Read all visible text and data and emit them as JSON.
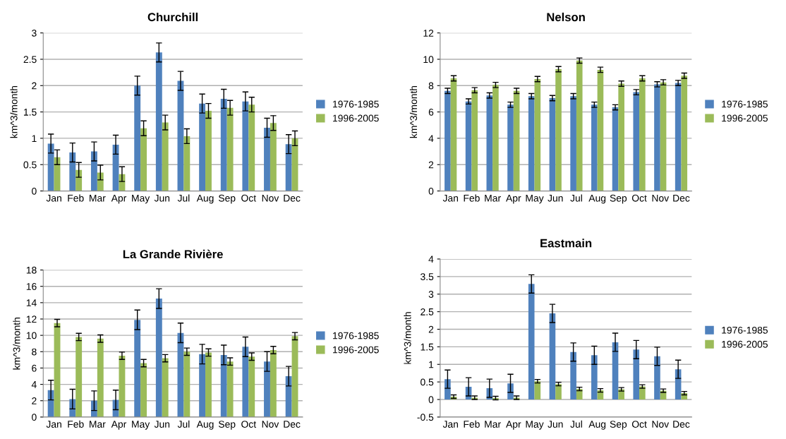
{
  "chart_data": [
    {
      "type": "bar",
      "title": "Churchill",
      "ylabel": "km^3/month",
      "categories": [
        "Jan",
        "Feb",
        "Mar",
        "Apr",
        "May",
        "Jun",
        "Jul",
        "Aug",
        "Sep",
        "Oct",
        "Nov",
        "Dec"
      ],
      "ylim": [
        0,
        3
      ],
      "yticks": [
        0,
        {
          "value": 0.5,
          "label": "0.5"
        },
        1,
        {
          "value": 1.5,
          "label": "1.5"
        },
        2,
        {
          "value": 2.5,
          "label": "2.5"
        },
        3
      ],
      "grid": "y",
      "legend": "right",
      "series": [
        {
          "name": "1976-1985",
          "color": "#4f81bd",
          "values": [
            0.9,
            0.73,
            0.75,
            0.88,
            2.0,
            2.63,
            2.09,
            1.66,
            1.75,
            1.7,
            1.2,
            0.89
          ],
          "errors": [
            0.18,
            0.18,
            0.18,
            0.18,
            0.18,
            0.18,
            0.18,
            0.18,
            0.18,
            0.18,
            0.18,
            0.18
          ]
        },
        {
          "name": "1996-2005",
          "color": "#9bbb59",
          "values": [
            0.64,
            0.4,
            0.35,
            0.32,
            1.19,
            1.3,
            1.04,
            1.52,
            1.58,
            1.64,
            1.29,
            1.0
          ],
          "errors": [
            0.14,
            0.14,
            0.14,
            0.14,
            0.14,
            0.14,
            0.14,
            0.14,
            0.14,
            0.14,
            0.14,
            0.14
          ]
        }
      ]
    },
    {
      "type": "bar",
      "title": "Nelson",
      "ylabel": "km^3/month",
      "categories": [
        "Jan",
        "Feb",
        "Mar",
        "Apr",
        "May",
        "Jun",
        "Jul",
        "Aug",
        "Sep",
        "Oct",
        "Nov",
        "Dec"
      ],
      "ylim": [
        0,
        12
      ],
      "yticks": [
        0,
        2,
        4,
        6,
        8,
        10,
        12
      ],
      "grid": "y",
      "legend": "right",
      "series": [
        {
          "name": "1976-1985",
          "color": "#4f81bd",
          "values": [
            7.6,
            6.8,
            7.25,
            6.55,
            7.2,
            7.05,
            7.2,
            6.55,
            6.35,
            7.5,
            8.1,
            8.2
          ],
          "errors": [
            0.2,
            0.2,
            0.2,
            0.2,
            0.2,
            0.2,
            0.2,
            0.2,
            0.2,
            0.2,
            0.2,
            0.2
          ]
        },
        {
          "name": "1996-2005",
          "color": "#9bbb59",
          "values": [
            8.55,
            7.65,
            8.05,
            7.6,
            8.5,
            9.25,
            9.9,
            9.2,
            8.15,
            8.55,
            8.25,
            8.75
          ],
          "errors": [
            0.2,
            0.2,
            0.2,
            0.2,
            0.2,
            0.2,
            0.2,
            0.2,
            0.2,
            0.2,
            0.2,
            0.2
          ]
        }
      ]
    },
    {
      "type": "bar",
      "title": "La Grande Rivière",
      "ylabel": "km^3/month",
      "categories": [
        "Jan",
        "Feb",
        "Mar",
        "Apr",
        "May",
        "Jun",
        "Jul",
        "Aug",
        "Sep",
        "Oct",
        "Nov",
        "Dec"
      ],
      "ylim": [
        0,
        18
      ],
      "yticks": [
        0,
        2,
        4,
        6,
        8,
        10,
        12,
        14,
        16,
        18
      ],
      "grid": "y",
      "legend": "right",
      "series": [
        {
          "name": "1976-1985",
          "color": "#4f81bd",
          "values": [
            3.3,
            2.2,
            2.0,
            2.1,
            11.9,
            14.5,
            10.3,
            7.7,
            7.6,
            8.6,
            6.8,
            5.0
          ],
          "errors": [
            1.2,
            1.2,
            1.2,
            1.2,
            1.2,
            1.2,
            1.2,
            1.2,
            1.2,
            1.2,
            1.2,
            1.2
          ]
        },
        {
          "name": "1996-2005",
          "color": "#9bbb59",
          "values": [
            11.5,
            9.8,
            9.6,
            7.5,
            6.6,
            7.2,
            8.0,
            7.9,
            6.8,
            7.4,
            8.2,
            9.9
          ],
          "errors": [
            0.45,
            0.45,
            0.45,
            0.45,
            0.45,
            0.45,
            0.45,
            0.45,
            0.45,
            0.45,
            0.45,
            0.45
          ]
        }
      ]
    },
    {
      "type": "bar",
      "title": "Eastmain",
      "ylabel": "km^3/month",
      "categories": [
        "Jan",
        "Feb",
        "Mar",
        "Apr",
        "May",
        "Jun",
        "Jul",
        "Aug",
        "Sep",
        "Oct",
        "Nov",
        "Dec"
      ],
      "ylim": [
        -0.5,
        4
      ],
      "yticks": [
        {
          "value": -0.5,
          "label": "-0.5"
        },
        0,
        {
          "value": 0.5,
          "label": "0.5"
        },
        1,
        {
          "value": 1.5,
          "label": "1.5"
        },
        2,
        {
          "value": 2.5,
          "label": "2.5"
        },
        3,
        {
          "value": 3.5,
          "label": "3.5"
        },
        4
      ],
      "grid": "y",
      "legend": "right",
      "series": [
        {
          "name": "1976-1985",
          "color": "#4f81bd",
          "values": [
            0.58,
            0.36,
            0.32,
            0.46,
            3.29,
            2.45,
            1.35,
            1.26,
            1.63,
            1.42,
            1.23,
            0.86
          ],
          "errors": [
            0.26,
            0.26,
            0.26,
            0.26,
            0.26,
            0.26,
            0.26,
            0.26,
            0.26,
            0.26,
            0.26,
            0.26
          ]
        },
        {
          "name": "1996-2005",
          "color": "#9bbb59",
          "values": [
            0.08,
            0.05,
            0.04,
            0.05,
            0.52,
            0.44,
            0.3,
            0.26,
            0.29,
            0.37,
            0.25,
            0.18
          ],
          "errors": [
            0.05,
            0.05,
            0.05,
            0.05,
            0.05,
            0.05,
            0.05,
            0.05,
            0.05,
            0.05,
            0.05,
            0.05
          ]
        }
      ]
    }
  ]
}
